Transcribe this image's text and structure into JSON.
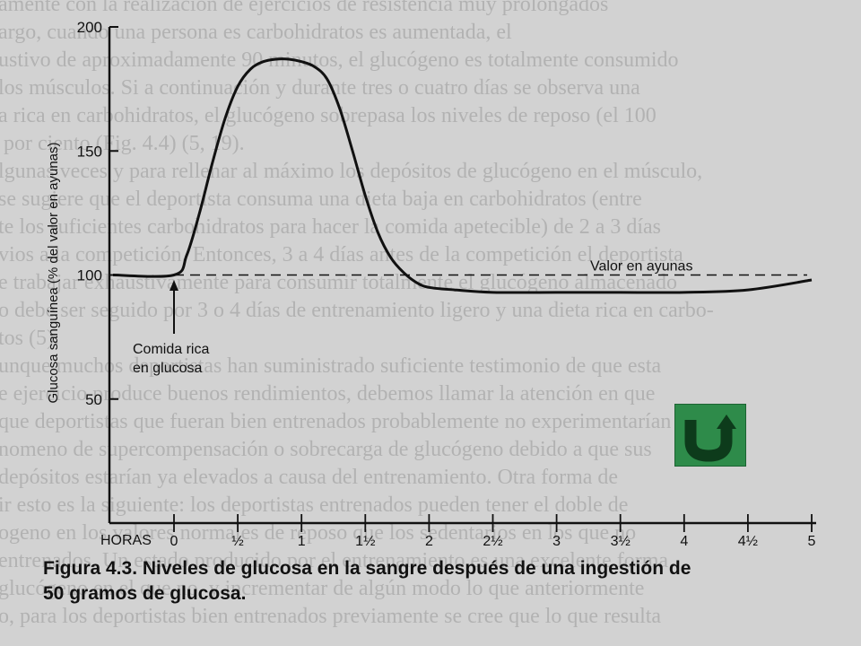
{
  "chart_data": {
    "type": "line",
    "title": "",
    "xlabel": "HORAS",
    "ylabel": "Glucosa sanguínea (% del valor en ayunas)",
    "xlim": [
      0,
      5
    ],
    "ylim": [
      0,
      200
    ],
    "x_ticks": [
      0,
      0.5,
      1,
      1.5,
      2,
      2.5,
      3,
      3.5,
      4,
      4.5,
      5
    ],
    "x_tick_labels": [
      "0",
      "½",
      "1",
      "1½",
      "2",
      "2½",
      "3",
      "3½",
      "4",
      "4½",
      "5"
    ],
    "y_ticks": [
      50,
      100,
      150,
      200
    ],
    "y_tick_labels": [
      "50",
      "100",
      "150",
      "200"
    ],
    "baseline": {
      "value": 100,
      "label": "Valor en ayunas"
    },
    "series": [
      {
        "x": [
          -0.5,
          0,
          0.1,
          0.2,
          0.3,
          0.4,
          0.5,
          0.6,
          0.7,
          0.8,
          0.9,
          1.0,
          1.1,
          1.2,
          1.3,
          1.4,
          1.5,
          1.6,
          1.7,
          1.8,
          1.9,
          2.0,
          2.2,
          2.5,
          3.0,
          3.5,
          4.0,
          4.5,
          5.0
        ],
        "values": [
          100,
          100,
          108,
          125,
          145,
          163,
          176,
          183,
          186,
          187,
          187,
          186,
          184,
          179,
          167,
          150,
          132,
          117,
          107,
          101,
          97,
          95,
          94,
          93,
          93,
          93,
          93,
          94,
          98
        ]
      }
    ],
    "annotations": [
      {
        "text": [
          "Comida rica",
          "en glucosa"
        ],
        "x": 0
      }
    ]
  },
  "caption": {
    "line1": "Figura 4.3. Niveles de glucosa en la sangre después de una ingestión de",
    "line2": "50 gramos de  glucosa."
  },
  "background_text": [
    "...amente con la realización de ejercicios de resistencia muy prolongados",
    "...argo, cuando una persona es carbohidratos es aumentada, el",
    "...ustivo de aproximadamente 90 minutos, el glucógeno es totalmente consumido",
    "...los músculos. Si a continuación y durante tres o cuatro días se observa una",
    "...a rica en carbohidratos, el glucógeno sobrepasa los niveles de reposo (el 100",
    "... por ciento (Fig. 4.4) (5, 19).",
    "...lgunas veces y para rellenar al máximo los depósitos de glucógeno en el músculo,",
    "...se sugiere que el deportista consuma una dieta baja en carbohidratos (entre",
    "...te los suficientes carbohidratos para hacer la comida apetecible) de 2 a 3 días",
    "...vios a la competición. Entonces, 3 a 4 días antes de la competición el deportista",
    "...e trabajar exhaustivamente para consumir totalmente el glucógeno almacenado",
    "...o debe ser seguido por 3 o 4 días de entrenamiento ligero y una dieta rica en carbo-",
    "...tos (5).",
    "...unque muchos deportistas han suministrado suficiente testimonio de que esta",
    "...e ejercicio produce buenos rendimientos, debemos llamar la atención en que",
    "...que deportistas que fueran bien entrenados probablemente no experimentarían",
    "...nomeno de supercompensación o sobrecarga de glucógeno debido a que sus",
    "...depósitos estarían ya elevados a causa del entrenamiento. Otra forma de",
    "...ir esto es la siguiente: los deportistas entrenados pueden tener el doble de",
    "...ogeno en los valores normales de reposo que los sedentarios en los que no",
    "...entrenados. Un estado producido por el entrenamiento es una excelente forma",
    "...glucógeno en el que no, y incrementar de algún modo lo que anteriormente",
    "...o, para los deportistas bien entrenados previamente se cree que lo que resulta"
  ],
  "nav": {
    "button_icon": "back-arrow-u-icon"
  },
  "colors": {
    "button": "#2e8b4a",
    "curve": "#111111"
  }
}
